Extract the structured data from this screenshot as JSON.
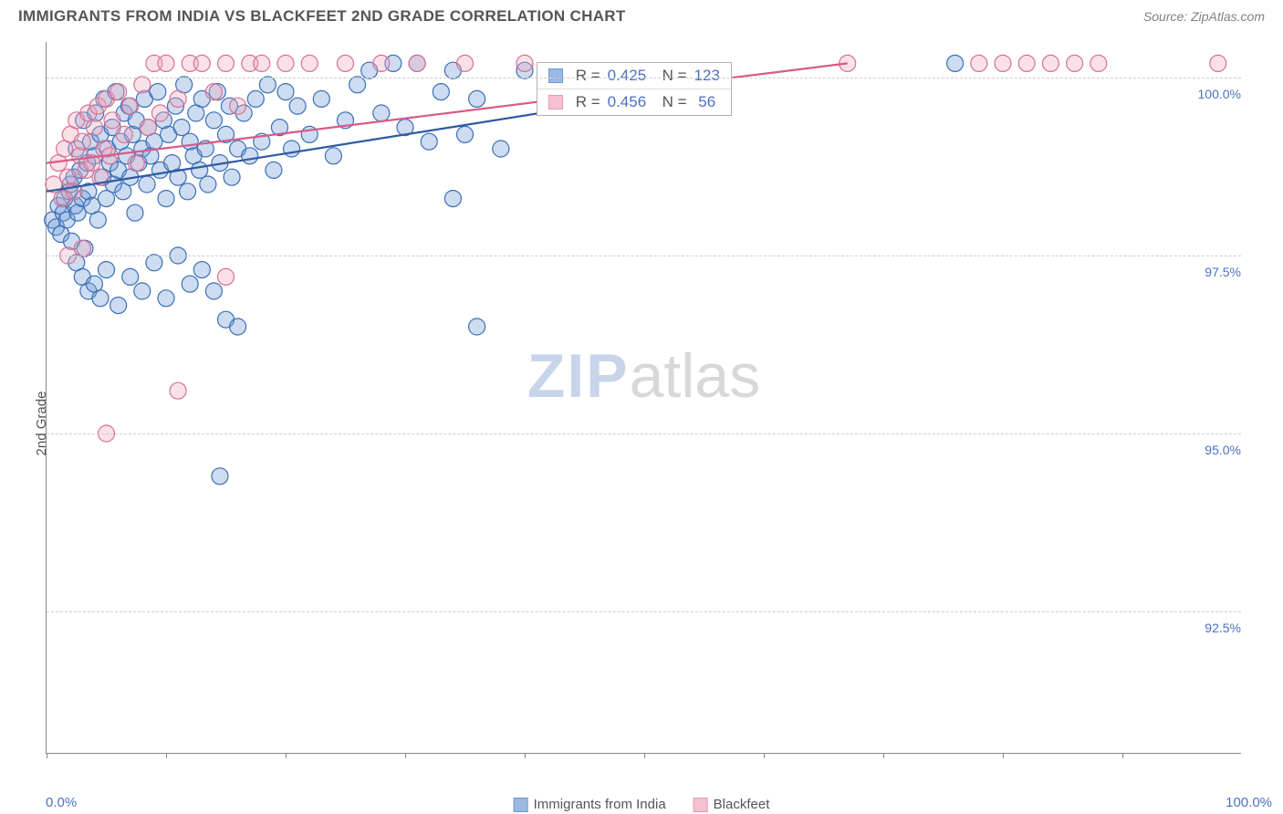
{
  "header": {
    "title": "IMMIGRANTS FROM INDIA VS BLACKFEET 2ND GRADE CORRELATION CHART",
    "source_prefix": "Source: ",
    "source": "ZipAtlas.com"
  },
  "chart": {
    "type": "scatter",
    "ylabel": "2nd Grade",
    "xlim": [
      0,
      100
    ],
    "ylim": [
      90.5,
      100.5
    ],
    "x_min_label": "0.0%",
    "x_max_label": "100.0%",
    "xtick_positions": [
      0,
      10,
      20,
      30,
      40,
      50,
      60,
      70,
      80,
      90
    ],
    "yticks": [
      {
        "value": 92.5,
        "label": "92.5%"
      },
      {
        "value": 95.0,
        "label": "95.0%"
      },
      {
        "value": 97.5,
        "label": "97.5%"
      },
      {
        "value": 100.0,
        "label": "100.0%"
      }
    ],
    "grid_color": "#cccccc",
    "background_color": "#ffffff",
    "axis_color": "#888888",
    "tick_label_color": "#4a72c4",
    "marker_radius": 9,
    "marker_fill_opacity": 0.35,
    "marker_stroke_width": 1.2,
    "line_stroke_width": 2.2,
    "series": [
      {
        "name": "Immigrants from India",
        "color_fill": "#6f9bd8",
        "color_stroke": "#3b6fb5",
        "line_color": "#2d5aa0",
        "R": 0.425,
        "N": 123,
        "trend": {
          "x1": 0,
          "y1": 98.4,
          "x2": 45,
          "y2": 99.6
        },
        "points": [
          [
            0.5,
            98.0
          ],
          [
            0.8,
            97.9
          ],
          [
            1.0,
            98.2
          ],
          [
            1.2,
            97.8
          ],
          [
            1.4,
            98.1
          ],
          [
            1.5,
            98.3
          ],
          [
            1.7,
            98.0
          ],
          [
            1.9,
            98.4
          ],
          [
            2.0,
            98.5
          ],
          [
            2.1,
            97.7
          ],
          [
            2.3,
            98.6
          ],
          [
            2.4,
            98.2
          ],
          [
            2.5,
            99.0
          ],
          [
            2.6,
            98.1
          ],
          [
            2.8,
            98.7
          ],
          [
            3.0,
            98.3
          ],
          [
            3.1,
            99.4
          ],
          [
            3.2,
            97.6
          ],
          [
            3.4,
            98.8
          ],
          [
            3.5,
            98.4
          ],
          [
            3.7,
            99.1
          ],
          [
            3.8,
            98.2
          ],
          [
            4.0,
            98.9
          ],
          [
            4.1,
            99.5
          ],
          [
            4.3,
            98.0
          ],
          [
            4.5,
            99.2
          ],
          [
            4.7,
            98.6
          ],
          [
            4.8,
            99.7
          ],
          [
            5.0,
            98.3
          ],
          [
            5.1,
            99.0
          ],
          [
            5.3,
            98.8
          ],
          [
            5.5,
            99.3
          ],
          [
            5.6,
            98.5
          ],
          [
            5.8,
            99.8
          ],
          [
            6.0,
            98.7
          ],
          [
            6.2,
            99.1
          ],
          [
            6.4,
            98.4
          ],
          [
            6.5,
            99.5
          ],
          [
            6.7,
            98.9
          ],
          [
            6.9,
            99.6
          ],
          [
            7.0,
            98.6
          ],
          [
            7.2,
            99.2
          ],
          [
            7.4,
            98.1
          ],
          [
            7.5,
            99.4
          ],
          [
            7.7,
            98.8
          ],
          [
            8.0,
            99.0
          ],
          [
            8.2,
            99.7
          ],
          [
            8.4,
            98.5
          ],
          [
            8.5,
            99.3
          ],
          [
            8.7,
            98.9
          ],
          [
            9.0,
            99.1
          ],
          [
            9.3,
            99.8
          ],
          [
            9.5,
            98.7
          ],
          [
            9.8,
            99.4
          ],
          [
            10.0,
            98.3
          ],
          [
            10.2,
            99.2
          ],
          [
            10.5,
            98.8
          ],
          [
            10.8,
            99.6
          ],
          [
            11.0,
            98.6
          ],
          [
            11.3,
            99.3
          ],
          [
            11.5,
            99.9
          ],
          [
            11.8,
            98.4
          ],
          [
            12.0,
            99.1
          ],
          [
            12.3,
            98.9
          ],
          [
            12.5,
            99.5
          ],
          [
            12.8,
            98.7
          ],
          [
            13.0,
            99.7
          ],
          [
            13.3,
            99.0
          ],
          [
            13.5,
            98.5
          ],
          [
            14.0,
            99.4
          ],
          [
            14.3,
            99.8
          ],
          [
            14.5,
            98.8
          ],
          [
            15.0,
            99.2
          ],
          [
            15.3,
            99.6
          ],
          [
            15.5,
            98.6
          ],
          [
            16.0,
            99.0
          ],
          [
            16.5,
            99.5
          ],
          [
            17.0,
            98.9
          ],
          [
            17.5,
            99.7
          ],
          [
            18.0,
            99.1
          ],
          [
            18.5,
            99.9
          ],
          [
            19.0,
            98.7
          ],
          [
            19.5,
            99.3
          ],
          [
            20.0,
            99.8
          ],
          [
            20.5,
            99.0
          ],
          [
            21.0,
            99.6
          ],
          [
            22.0,
            99.2
          ],
          [
            23.0,
            99.7
          ],
          [
            24.0,
            98.9
          ],
          [
            25.0,
            99.4
          ],
          [
            26.0,
            99.9
          ],
          [
            27.0,
            100.1
          ],
          [
            28.0,
            99.5
          ],
          [
            29.0,
            100.2
          ],
          [
            30.0,
            99.3
          ],
          [
            31.0,
            100.2
          ],
          [
            32.0,
            99.1
          ],
          [
            33.0,
            99.8
          ],
          [
            34.0,
            100.1
          ],
          [
            35.0,
            99.2
          ],
          [
            36.0,
            99.7
          ],
          [
            38.0,
            99.0
          ],
          [
            40.0,
            100.1
          ],
          [
            2.5,
            97.4
          ],
          [
            3.0,
            97.2
          ],
          [
            3.5,
            97.0
          ],
          [
            4.0,
            97.1
          ],
          [
            4.5,
            96.9
          ],
          [
            5.0,
            97.3
          ],
          [
            6.0,
            96.8
          ],
          [
            7.0,
            97.2
          ],
          [
            8.0,
            97.0
          ],
          [
            9.0,
            97.4
          ],
          [
            10.0,
            96.9
          ],
          [
            11.0,
            97.5
          ],
          [
            12.0,
            97.1
          ],
          [
            13.0,
            97.3
          ],
          [
            14.0,
            97.0
          ],
          [
            15.0,
            96.6
          ],
          [
            16.0,
            96.5
          ],
          [
            14.5,
            94.4
          ],
          [
            36.0,
            96.5
          ],
          [
            34.0,
            98.3
          ],
          [
            76.0,
            100.2
          ]
        ]
      },
      {
        "name": "Blackfeet",
        "color_fill": "#f2a8bd",
        "color_stroke": "#d87093",
        "line_color": "#d85a8a",
        "R": 0.456,
        "N": 56,
        "trend": {
          "x1": 0,
          "y1": 98.8,
          "x2": 67,
          "y2": 100.2
        },
        "points": [
          [
            0.6,
            98.5
          ],
          [
            1.0,
            98.8
          ],
          [
            1.3,
            98.3
          ],
          [
            1.5,
            99.0
          ],
          [
            1.8,
            98.6
          ],
          [
            2.0,
            99.2
          ],
          [
            2.3,
            98.4
          ],
          [
            2.5,
            99.4
          ],
          [
            2.8,
            98.9
          ],
          [
            3.0,
            99.1
          ],
          [
            3.3,
            98.7
          ],
          [
            3.5,
            99.5
          ],
          [
            3.8,
            98.8
          ],
          [
            4.0,
            99.3
          ],
          [
            4.3,
            99.6
          ],
          [
            4.5,
            98.6
          ],
          [
            4.8,
            99.0
          ],
          [
            5.0,
            99.7
          ],
          [
            5.3,
            98.9
          ],
          [
            5.5,
            99.4
          ],
          [
            6.0,
            99.8
          ],
          [
            6.5,
            99.2
          ],
          [
            7.0,
            99.6
          ],
          [
            7.5,
            98.8
          ],
          [
            8.0,
            99.9
          ],
          [
            8.5,
            99.3
          ],
          [
            9.0,
            100.2
          ],
          [
            9.5,
            99.5
          ],
          [
            10.0,
            100.2
          ],
          [
            11.0,
            99.7
          ],
          [
            12.0,
            100.2
          ],
          [
            13.0,
            100.2
          ],
          [
            14.0,
            99.8
          ],
          [
            15.0,
            100.2
          ],
          [
            16.0,
            99.6
          ],
          [
            17.0,
            100.2
          ],
          [
            18.0,
            100.2
          ],
          [
            20.0,
            100.2
          ],
          [
            22.0,
            100.2
          ],
          [
            25.0,
            100.2
          ],
          [
            28.0,
            100.2
          ],
          [
            31.0,
            100.2
          ],
          [
            35.0,
            100.2
          ],
          [
            40.0,
            100.2
          ],
          [
            67.0,
            100.2
          ],
          [
            78.0,
            100.2
          ],
          [
            80.0,
            100.2
          ],
          [
            82.0,
            100.2
          ],
          [
            84.0,
            100.2
          ],
          [
            86.0,
            100.2
          ],
          [
            88.0,
            100.2
          ],
          [
            98.0,
            100.2
          ],
          [
            1.8,
            97.5
          ],
          [
            3.0,
            97.6
          ],
          [
            5.0,
            95.0
          ],
          [
            11.0,
            95.6
          ],
          [
            15.0,
            97.2
          ]
        ]
      }
    ],
    "stats_box": {
      "left_pct": 41,
      "top_pct": 2.8
    },
    "legend_bottom": [
      {
        "label": "Immigrants from India",
        "fill": "#6f9bd8",
        "stroke": "#3b6fb5"
      },
      {
        "label": "Blackfeet",
        "fill": "#f2a8bd",
        "stroke": "#d87093"
      }
    ],
    "watermark": {
      "part1": "ZIP",
      "part2": "atlas"
    }
  }
}
